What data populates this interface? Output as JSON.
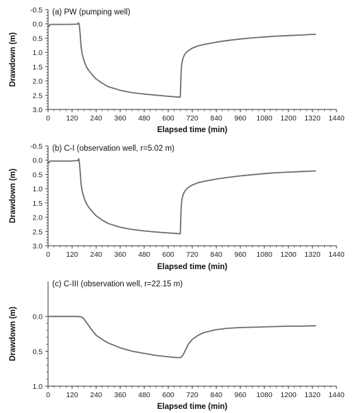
{
  "colors": {
    "series": "#6b6b6b",
    "axis": "#333333",
    "background": "#ffffff"
  },
  "chart_data": [
    {
      "type": "line",
      "panel_label": "(a) PW (pumping well)",
      "xlabel": "Elapsed time (min)",
      "ylabel": "Drawdown (m)",
      "xlim": [
        0,
        1440
      ],
      "ylim": [
        -0.5,
        3.0
      ],
      "y_inverted": true,
      "grid": false,
      "xticks": [
        0,
        120,
        240,
        360,
        480,
        600,
        720,
        840,
        960,
        1080,
        1200,
        1320,
        1440
      ],
      "xtick_labels": [
        "0",
        "120",
        "240",
        "360",
        "480",
        "600",
        "720",
        "840",
        "960",
        "1080",
        "1200",
        "1320",
        "1440"
      ],
      "yticks": [
        -0.5,
        0.0,
        0.5,
        1.0,
        1.5,
        2.0,
        2.5,
        3.0
      ],
      "ytick_labels": [
        "-0.5",
        "0.0",
        "0.5",
        "1.0",
        "1.5",
        "2.0",
        "2.5",
        "3.0"
      ],
      "series": [
        {
          "x": [
            0,
            5,
            10,
            30,
            60,
            100,
            140,
            150,
            153,
            156,
            160,
            165,
            170,
            180,
            190,
            200,
            220,
            240,
            270,
            300,
            360,
            420,
            480,
            540,
            600,
            640,
            660,
            662,
            664,
            667,
            670,
            675,
            680,
            690,
            700,
            720,
            750,
            780,
            840,
            900,
            960,
            1020,
            1080,
            1140,
            1200,
            1260,
            1320,
            1335
          ],
          "y": [
            0.05,
            0.08,
            0.02,
            0.02,
            0.02,
            0.02,
            0.01,
            0.0,
            -0.04,
            0.05,
            0.35,
            0.8,
            1.05,
            1.3,
            1.48,
            1.6,
            1.78,
            1.93,
            2.08,
            2.2,
            2.33,
            2.41,
            2.46,
            2.5,
            2.54,
            2.56,
            2.57,
            2.2,
            1.7,
            1.45,
            1.3,
            1.18,
            1.1,
            1.0,
            0.94,
            0.85,
            0.77,
            0.72,
            0.64,
            0.58,
            0.53,
            0.49,
            0.46,
            0.43,
            0.41,
            0.39,
            0.37,
            0.37
          ]
        }
      ]
    },
    {
      "type": "line",
      "panel_label": "(b) C-I (observation well, r=5.02 m)",
      "xlabel": "Elapsed time (min)",
      "ylabel": "Drawdown (m)",
      "xlim": [
        0,
        1440
      ],
      "ylim": [
        -0.5,
        3.0
      ],
      "y_inverted": true,
      "grid": false,
      "xticks": [
        0,
        120,
        240,
        360,
        480,
        600,
        720,
        840,
        960,
        1080,
        1200,
        1320,
        1440
      ],
      "xtick_labels": [
        "0",
        "120",
        "240",
        "360",
        "480",
        "600",
        "720",
        "840",
        "960",
        "1080",
        "1200",
        "1320",
        "1440"
      ],
      "yticks": [
        -0.5,
        0.0,
        0.5,
        1.0,
        1.5,
        2.0,
        2.5,
        3.0
      ],
      "ytick_labels": [
        "-0.5",
        "0.0",
        "0.5",
        "1.0",
        "1.5",
        "2.0",
        "2.5",
        "3.0"
      ],
      "series": [
        {
          "x": [
            0,
            5,
            10,
            30,
            60,
            100,
            140,
            150,
            153,
            156,
            160,
            165,
            170,
            180,
            190,
            200,
            220,
            240,
            270,
            300,
            360,
            420,
            480,
            540,
            600,
            640,
            660,
            662,
            664,
            667,
            670,
            675,
            680,
            690,
            700,
            720,
            750,
            780,
            840,
            900,
            960,
            1020,
            1080,
            1140,
            1200,
            1260,
            1320,
            1335
          ],
          "y": [
            0.06,
            0.09,
            0.03,
            0.03,
            0.03,
            0.03,
            0.02,
            0.01,
            -0.05,
            0.05,
            0.38,
            0.85,
            1.08,
            1.33,
            1.5,
            1.62,
            1.8,
            1.95,
            2.1,
            2.22,
            2.35,
            2.43,
            2.48,
            2.52,
            2.55,
            2.57,
            2.58,
            2.2,
            1.72,
            1.47,
            1.32,
            1.2,
            1.12,
            1.02,
            0.96,
            0.87,
            0.79,
            0.74,
            0.66,
            0.6,
            0.55,
            0.51,
            0.47,
            0.44,
            0.42,
            0.4,
            0.38,
            0.38
          ]
        }
      ]
    },
    {
      "type": "line",
      "panel_label": "(c) C-III (observation well, r=22.15 m)",
      "xlabel": "Elapsed time (min)",
      "ylabel": "Drawdown (m)",
      "xlim": [
        0,
        1440
      ],
      "ylim": [
        -0.5,
        1.0
      ],
      "y_inverted": true,
      "grid": false,
      "xticks": [
        0,
        120,
        240,
        360,
        480,
        600,
        720,
        840,
        960,
        1080,
        1200,
        1320,
        1440
      ],
      "xtick_labels": [
        "0",
        "120",
        "240",
        "360",
        "480",
        "600",
        "720",
        "840",
        "960",
        "1080",
        "1200",
        "1320",
        "1440"
      ],
      "yticks": [
        0.0,
        0.5,
        1.0
      ],
      "ytick_labels": [
        "0.0",
        "0.5",
        "1.0"
      ],
      "series": [
        {
          "x": [
            0,
            30,
            60,
            100,
            150,
            170,
            180,
            190,
            200,
            220,
            240,
            270,
            300,
            360,
            420,
            480,
            540,
            600,
            640,
            660,
            670,
            680,
            690,
            700,
            720,
            750,
            780,
            840,
            900,
            960,
            1020,
            1080,
            1140,
            1200,
            1260,
            1320,
            1335
          ],
          "y": [
            0.0,
            0.0,
            0.0,
            0.0,
            0.0,
            0.01,
            0.04,
            0.08,
            0.12,
            0.2,
            0.27,
            0.33,
            0.38,
            0.45,
            0.5,
            0.53,
            0.56,
            0.58,
            0.59,
            0.59,
            0.57,
            0.52,
            0.46,
            0.4,
            0.33,
            0.27,
            0.23,
            0.19,
            0.17,
            0.16,
            0.155,
            0.15,
            0.145,
            0.14,
            0.14,
            0.135,
            0.135
          ]
        }
      ]
    }
  ]
}
